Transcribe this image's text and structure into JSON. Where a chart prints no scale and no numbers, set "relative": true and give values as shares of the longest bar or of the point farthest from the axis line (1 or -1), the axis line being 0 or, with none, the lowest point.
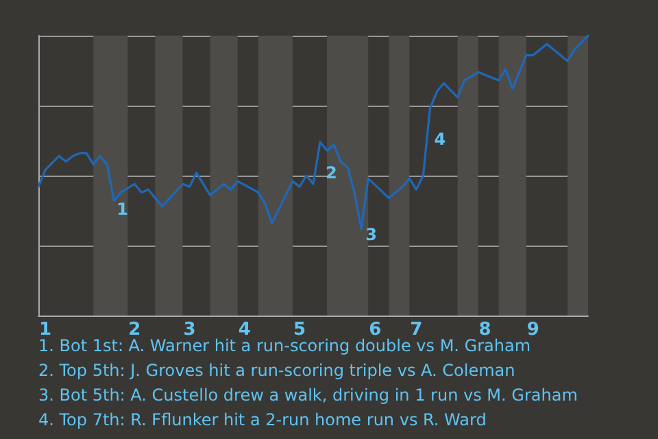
{
  "chart_data": {
    "type": "line",
    "relative": true,
    "grid": "y",
    "marker": "none",
    "line_style": "solid",
    "categories": [
      null,
      "1",
      null,
      null,
      null,
      null,
      null,
      null,
      null,
      null,
      null,
      null,
      null,
      null,
      "2",
      null,
      null,
      null,
      null,
      null,
      null,
      null,
      "3",
      null,
      null,
      null,
      null,
      null,
      null,
      null,
      "4",
      null,
      null,
      null,
      null,
      null,
      null,
      null,
      "5",
      null,
      null,
      null,
      null,
      null,
      null,
      null,
      null,
      null,
      null,
      "6",
      null,
      null,
      null,
      null,
      null,
      "7",
      null,
      null,
      null,
      null,
      null,
      null,
      null,
      null,
      null,
      "8",
      null,
      null,
      null,
      null,
      null,
      null,
      "9",
      null,
      null,
      null,
      null,
      null,
      null,
      null,
      null
    ],
    "series": [
      {
        "color": "#1f68b8",
        "values": [
          0.46,
          0.52,
          null,
          0.57,
          0.55,
          0.57,
          0.58,
          0.58,
          0.54,
          0.57,
          0.54,
          0.41,
          0.44,
          null,
          0.47,
          0.44,
          0.45,
          null,
          0.39,
          null,
          null,
          0.47,
          0.46,
          0.51,
          null,
          0.43,
          null,
          0.47,
          0.45,
          0.48,
          null,
          null,
          0.44,
          0.4,
          0.33,
          null,
          null,
          0.48,
          0.46,
          0.5,
          0.47,
          0.62,
          0.59,
          0.61,
          0.55,
          0.53,
          0.44,
          0.31,
          0.49,
          null,
          null,
          0.42,
          null,
          0.46,
          0.49,
          0.45,
          0.5,
          0.74,
          0.8,
          0.83,
          null,
          0.78,
          0.84,
          null,
          0.87,
          null,
          0.85,
          0.84,
          0.88,
          0.81,
          null,
          0.93,
          0.93,
          null,
          0.97,
          null,
          null,
          0.91,
          0.95,
          null,
          1
        ]
      }
    ],
    "annotations": [
      "1",
      "2",
      "3",
      "4",
      "1. Bot 1st: A. Warner hit a run-scoring double vs M. Graham",
      "2. Top 5th: J. Groves hit a run-scoring triple vs A. Coleman",
      "3. Bot 5th: A. Custello drew a walk, driving in 1 run vs M. Graham",
      "4. Top 7th: R. Fflunker hit a 2-run home run vs R. Ward"
    ]
  }
}
